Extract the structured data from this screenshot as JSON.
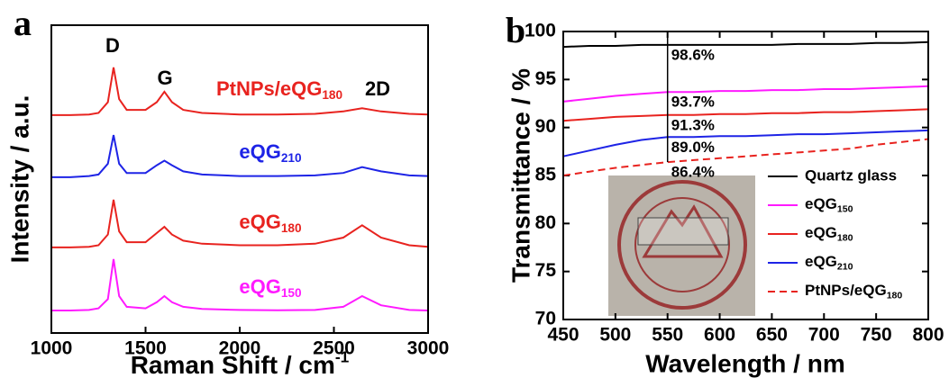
{
  "chart_data": [
    {
      "type": "line",
      "panel": "a",
      "ylabel": "Intensity / a.u.",
      "xlabel": "Raman Shift / cm-1",
      "xlim": [
        1000,
        3000
      ],
      "xticks": [
        1000,
        1500,
        2000,
        2500,
        3000
      ],
      "ylim": [
        0,
        100
      ],
      "annotations": [
        "D",
        "G",
        "2D"
      ],
      "x": [
        1000,
        1100,
        1200,
        1250,
        1300,
        1330,
        1360,
        1400,
        1500,
        1560,
        1600,
        1640,
        1700,
        1800,
        2000,
        2200,
        2400,
        2550,
        2650,
        2750,
        2900,
        3000
      ],
      "series": [
        {
          "name": "PtNPs/eQG180",
          "color": "#e8231f",
          "values": [
            70.8,
            70.8,
            71,
            71.5,
            75,
            86.3,
            76,
            72.5,
            72.5,
            75,
            78.4,
            75,
            72.5,
            71.5,
            71,
            71,
            71.2,
            72,
            73,
            72,
            71.2,
            71
          ]
        },
        {
          "name": "eQG210",
          "color": "#1e24e6",
          "values": [
            50.6,
            50.6,
            51,
            51.5,
            55,
            64.3,
            55,
            52,
            52,
            54.5,
            56,
            54.5,
            52.5,
            51.5,
            51,
            51,
            51.2,
            52,
            53.9,
            52.5,
            51.2,
            51
          ]
        },
        {
          "name": "eQG180",
          "color": "#e8231f",
          "values": [
            27.8,
            27.8,
            28,
            28.5,
            32,
            43.3,
            33,
            29.5,
            29.5,
            32.5,
            34.5,
            32,
            30,
            29,
            28.5,
            28.5,
            29,
            31,
            35,
            31,
            28.5,
            28
          ]
        },
        {
          "name": "eQG150",
          "color": "#ff1aff",
          "values": [
            7.3,
            7.3,
            7.5,
            8,
            11,
            24,
            12,
            8.5,
            8,
            10,
            12,
            10,
            8.5,
            7.8,
            7.5,
            7.4,
            7.5,
            8.5,
            12,
            9,
            7.5,
            7.3
          ]
        }
      ]
    },
    {
      "type": "line",
      "panel": "b",
      "ylabel": "Transmittance / %",
      "xlabel": "Wavelength / nm",
      "xlim": [
        450,
        800
      ],
      "xticks": [
        450,
        500,
        550,
        600,
        650,
        700,
        750,
        800
      ],
      "ylim": [
        70,
        100
      ],
      "yticks": [
        70,
        75,
        80,
        85,
        90,
        95,
        100
      ],
      "x": [
        450,
        475,
        500,
        525,
        550,
        575,
        600,
        625,
        650,
        675,
        700,
        725,
        750,
        775,
        800
      ],
      "series": [
        {
          "name": "Quartz glass",
          "color": "#000000",
          "dash": false,
          "values": [
            98.4,
            98.5,
            98.5,
            98.6,
            98.6,
            98.6,
            98.6,
            98.6,
            98.6,
            98.7,
            98.7,
            98.7,
            98.8,
            98.8,
            98.9
          ]
        },
        {
          "name": "eQG150",
          "color": "#ff1aff",
          "dash": false,
          "values": [
            92.7,
            93.0,
            93.3,
            93.5,
            93.7,
            93.7,
            93.8,
            93.8,
            93.9,
            93.9,
            94.0,
            94.0,
            94.1,
            94.2,
            94.3
          ]
        },
        {
          "name": "eQG180",
          "color": "#e8231f",
          "dash": false,
          "values": [
            90.7,
            90.9,
            91.1,
            91.2,
            91.3,
            91.3,
            91.4,
            91.4,
            91.5,
            91.5,
            91.6,
            91.6,
            91.7,
            91.8,
            91.9
          ]
        },
        {
          "name": "eQG210",
          "color": "#1e24e6",
          "dash": false,
          "values": [
            87.0,
            87.6,
            88.2,
            88.7,
            89.0,
            89.0,
            89.1,
            89.1,
            89.2,
            89.3,
            89.3,
            89.4,
            89.5,
            89.6,
            89.7
          ]
        },
        {
          "name": "PtNPs/eQG180",
          "color": "#e8231f",
          "dash": true,
          "values": [
            85.0,
            85.4,
            85.8,
            86.1,
            86.4,
            86.6,
            86.8,
            87.0,
            87.2,
            87.4,
            87.6,
            87.8,
            88.2,
            88.5,
            88.8
          ]
        }
      ],
      "reference": {
        "x": 550,
        "values": [
          98.6,
          93.7,
          91.3,
          89.0,
          86.4
        ],
        "value_labels": [
          "98.6%",
          "93.7%",
          "91.3%",
          "89.0%",
          "86.4%"
        ]
      }
    }
  ]
}
